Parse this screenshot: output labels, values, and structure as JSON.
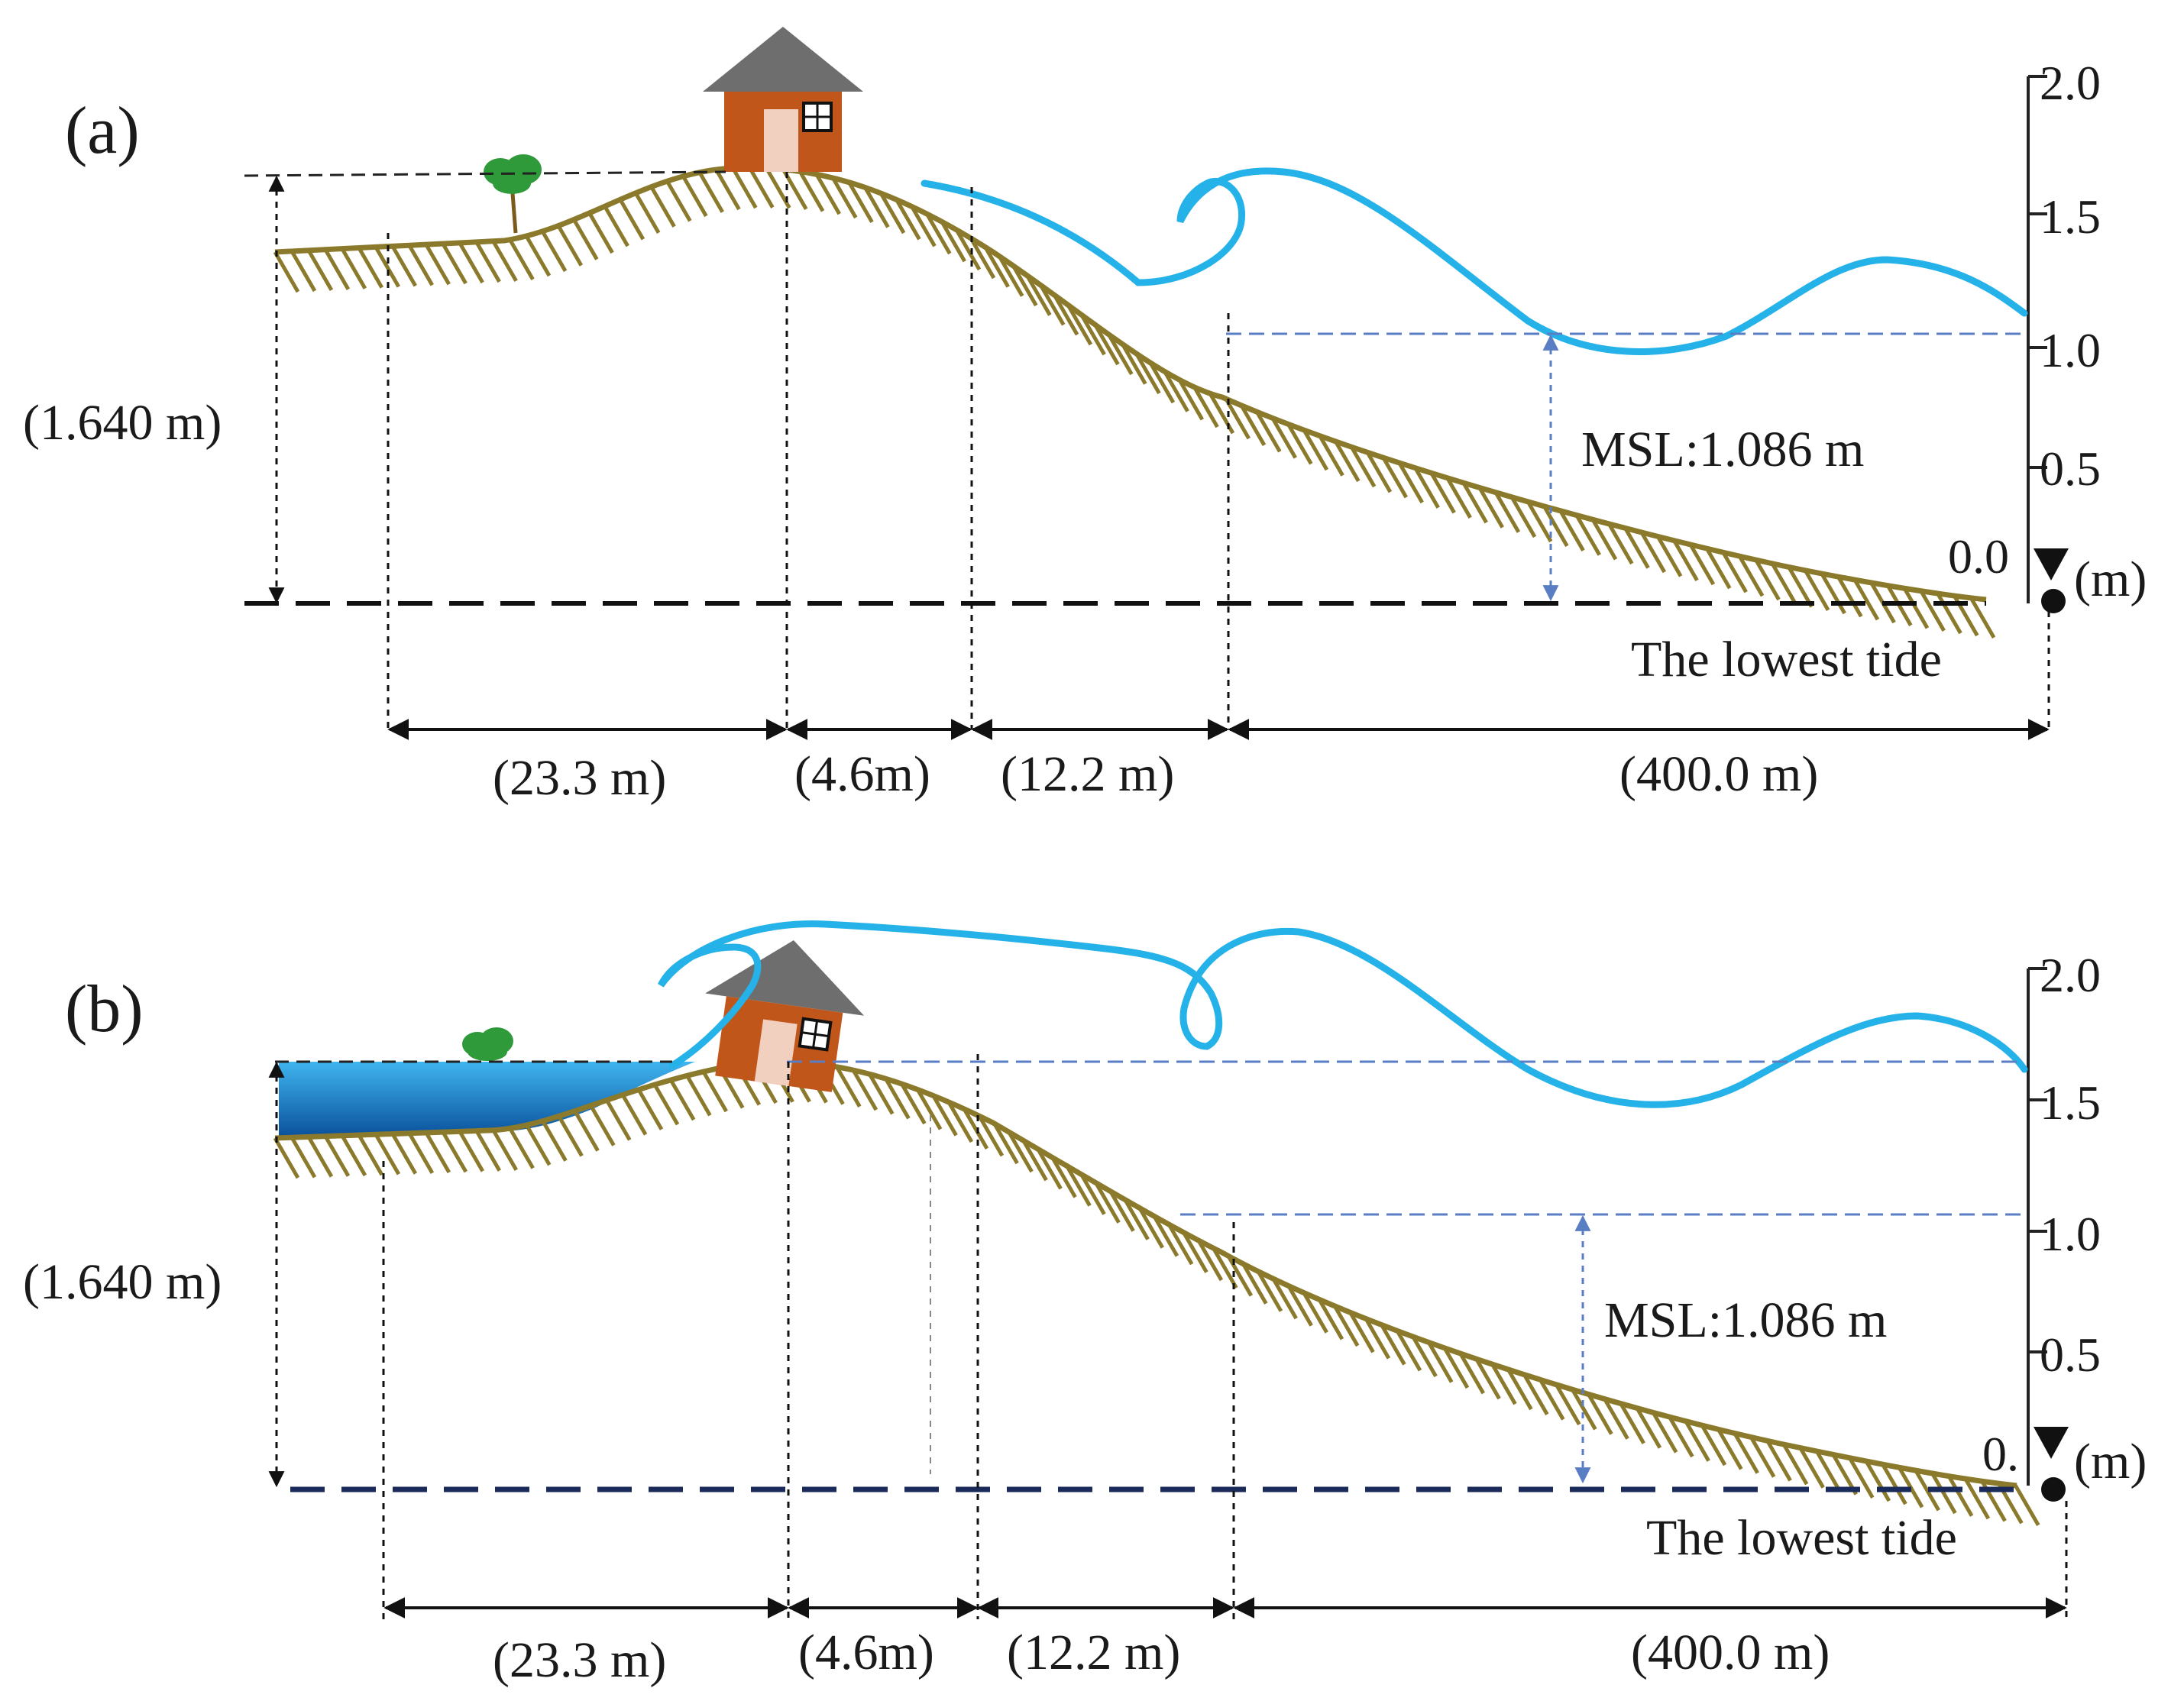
{
  "colors": {
    "ground": "#8b7a2b",
    "water": "#25b2e8",
    "pool_top": "#3fb5ee",
    "pool_bottom": "#0a4f9a",
    "guide_blue": "#5a7ec4",
    "roof": "#6e6e6e",
    "house_wall": "#c0561a",
    "tree": "#2e9a3a",
    "datum_b": "#1a2a5a"
  },
  "icons": [
    "house-icon",
    "tree-icon",
    "water-level-triangle-icon",
    "origin-dot-icon"
  ],
  "axis": {
    "unit": "(m)",
    "ticks": [
      "2.0",
      "1.5",
      "1.0",
      "0.5"
    ],
    "zero_a": "0.0",
    "zero_b": "0."
  },
  "panels": [
    {
      "letter": "(a)",
      "height_label": "(1.640 m)",
      "msl_label": "MSL:1.086 m",
      "tide_label": "The lowest tide",
      "distances": [
        "(23.3 m)",
        "(4.6m)",
        "(12.2 m)",
        "(400.0 m)"
      ]
    },
    {
      "letter": "(b)",
      "height_label": "(1.640 m)",
      "msl_label": "MSL:1.086 m",
      "tide_label": "The lowest tide",
      "distances": [
        "(23.3 m)",
        "(4.6m)",
        "(12.2 m)",
        "(400.0 m)"
      ]
    }
  ]
}
